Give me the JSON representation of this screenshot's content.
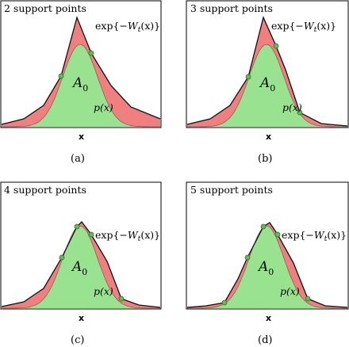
{
  "panels": [
    {
      "title": "2 support points",
      "caption": "(a)",
      "x_label": "x",
      "region_label": "A",
      "region_sub": "0",
      "envelope_label": {
        "pre": "exp{−",
        "W": "W",
        "sub": "t",
        "post": "(x)}"
      },
      "density_label": "p(x)",
      "n_support": 2
    },
    {
      "title": "3 support points",
      "caption": "(b)",
      "x_label": "x",
      "region_label": "A",
      "region_sub": "0",
      "envelope_label": {
        "pre": "exp{−",
        "W": "W",
        "sub": "t",
        "post": "(x)}"
      },
      "density_label": "p(x)",
      "n_support": 3
    },
    {
      "title": "4 support points",
      "caption": "(c)",
      "x_label": "x",
      "region_label": "A",
      "region_sub": "0",
      "envelope_label": {
        "pre": "exp{−",
        "W": "W",
        "sub": "t",
        "post": "(x)}"
      },
      "density_label": "p(x)",
      "n_support": 4
    },
    {
      "title": "5 support points",
      "caption": "(d)",
      "x_label": "x",
      "region_label": "A",
      "region_sub": "0",
      "envelope_label": {
        "pre": "exp{−",
        "W": "W",
        "sub": "t",
        "post": "(x)}"
      },
      "density_label": "p(x)",
      "n_support": 5
    }
  ],
  "colors": {
    "envelope_fill": "#f08080",
    "density_fill": "#98e290",
    "support_point": "#5cc04e",
    "line": "#1a0a0a",
    "frame": "#000000"
  }
}
